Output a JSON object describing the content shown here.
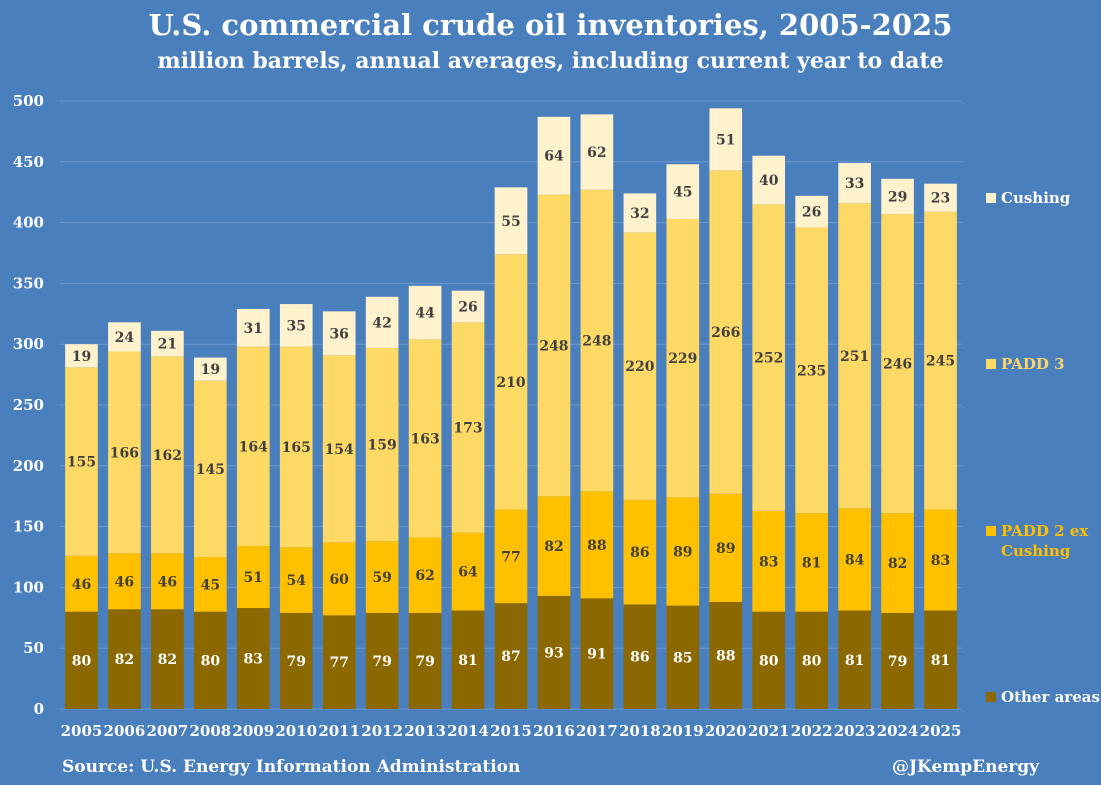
{
  "header": {
    "title": "U.S. commercial crude oil inventories, 2005-2025",
    "subtitle": "million barrels, annual averages, including current year to date"
  },
  "footer": {
    "source": "Source: U.S. Energy Information Administration",
    "handle": "@JKempEnergy"
  },
  "legend": {
    "cushing": "Cushing",
    "padd3": "PADD 3",
    "padd2": "PADD 2 ex Cushing",
    "other": "Other areas"
  },
  "colors": {
    "background": "#4a7fbd",
    "cushing": "#fff2cc",
    "padd3": "#ffd966",
    "padd2": "#ffc000",
    "other": "#8c6900",
    "grid": "#6f9ad0",
    "axis_text": "#ffffff"
  },
  "chart_data": {
    "type": "bar",
    "stacked": true,
    "title": "U.S. commercial crude oil inventories, 2005-2025",
    "subtitle": "million barrels, annual averages, including current year to date",
    "xlabel": "",
    "ylabel": "",
    "ylim": [
      0,
      500
    ],
    "yticks": [
      0,
      50,
      100,
      150,
      200,
      250,
      300,
      350,
      400,
      450,
      500
    ],
    "grid": true,
    "legend_position": "right",
    "categories": [
      "2005",
      "2006",
      "2007",
      "2008",
      "2009",
      "2010",
      "2011",
      "2012",
      "2013",
      "2014",
      "2015",
      "2016",
      "2017",
      "2018",
      "2019",
      "2020",
      "2021",
      "2022",
      "2023",
      "2024",
      "2025"
    ],
    "series": [
      {
        "name": "Other areas",
        "color": "#8c6900",
        "label_color": "#ffffff",
        "values": [
          80,
          82,
          82,
          80,
          83,
          79,
          77,
          79,
          79,
          81,
          87,
          93,
          91,
          86,
          85,
          88,
          80,
          80,
          81,
          79,
          81
        ]
      },
      {
        "name": "PADD 2 ex Cushing",
        "color": "#ffc000",
        "label_color": "#404040",
        "values": [
          46,
          46,
          46,
          45,
          51,
          54,
          60,
          59,
          62,
          64,
          77,
          82,
          88,
          86,
          89,
          89,
          83,
          81,
          84,
          82,
          83
        ]
      },
      {
        "name": "PADD 3",
        "color": "#ffd966",
        "label_color": "#404040",
        "values": [
          155,
          166,
          162,
          145,
          164,
          165,
          154,
          159,
          163,
          173,
          210,
          248,
          248,
          220,
          229,
          266,
          252,
          235,
          251,
          246,
          245
        ]
      },
      {
        "name": "Cushing",
        "color": "#fff2cc",
        "label_color": "#404040",
        "values": [
          19,
          24,
          21,
          19,
          31,
          35,
          36,
          42,
          44,
          26,
          55,
          64,
          62,
          32,
          45,
          51,
          40,
          26,
          33,
          29,
          23
        ]
      }
    ]
  }
}
